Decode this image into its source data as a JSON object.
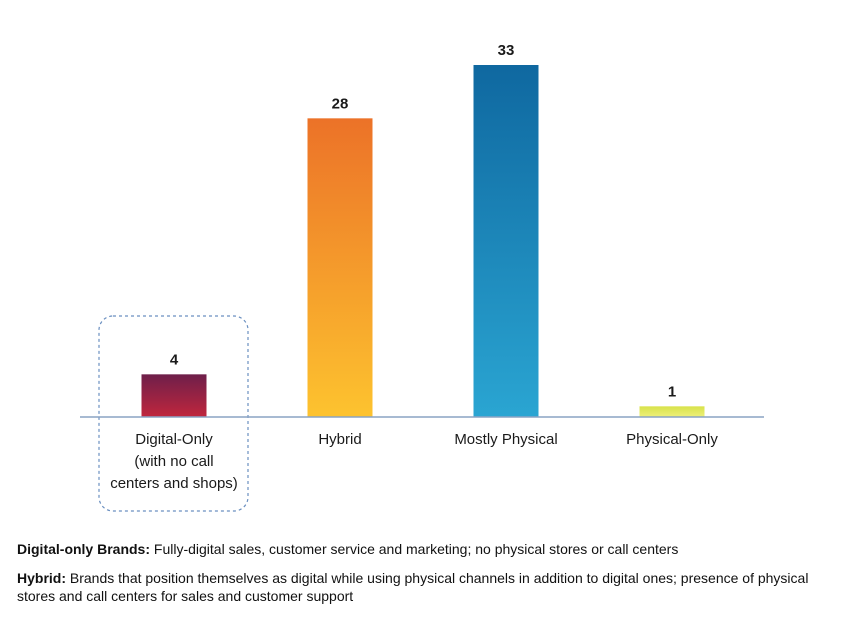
{
  "chart_data": {
    "type": "bar",
    "categories": [
      [
        "Digital-Only",
        "(with no call",
        "centers and shops)"
      ],
      [
        "Hybrid"
      ],
      [
        "Mostly Physical"
      ],
      [
        "Physical-Only"
      ]
    ],
    "values": [
      4,
      28,
      33,
      1
    ],
    "value_labels": [
      "4",
      "28",
      "33",
      "1"
    ],
    "ylim": [
      0,
      33
    ],
    "grid": false,
    "highlighted_category": 0,
    "colors": [
      [
        "#6e1f4a",
        "#c0263d"
      ],
      [
        "#ec7228",
        "#fdc32f"
      ],
      [
        "#0f68a0",
        "#2aa5d2"
      ],
      [
        "#d8e24a",
        "#eef07a"
      ]
    ],
    "axis_color": "#8aa3c4",
    "highlight_border_color": "#6a8fc0"
  },
  "definitions": [
    {
      "term": "Digital-only Brands:",
      "text": " Fully-digital sales, customer service and marketing; no physical stores or call centers"
    },
    {
      "term": "Hybrid:",
      "text": " Brands that position themselves as digital while using physical channels in addition to digital ones; presence of physical stores and call centers for sales and customer support"
    }
  ]
}
